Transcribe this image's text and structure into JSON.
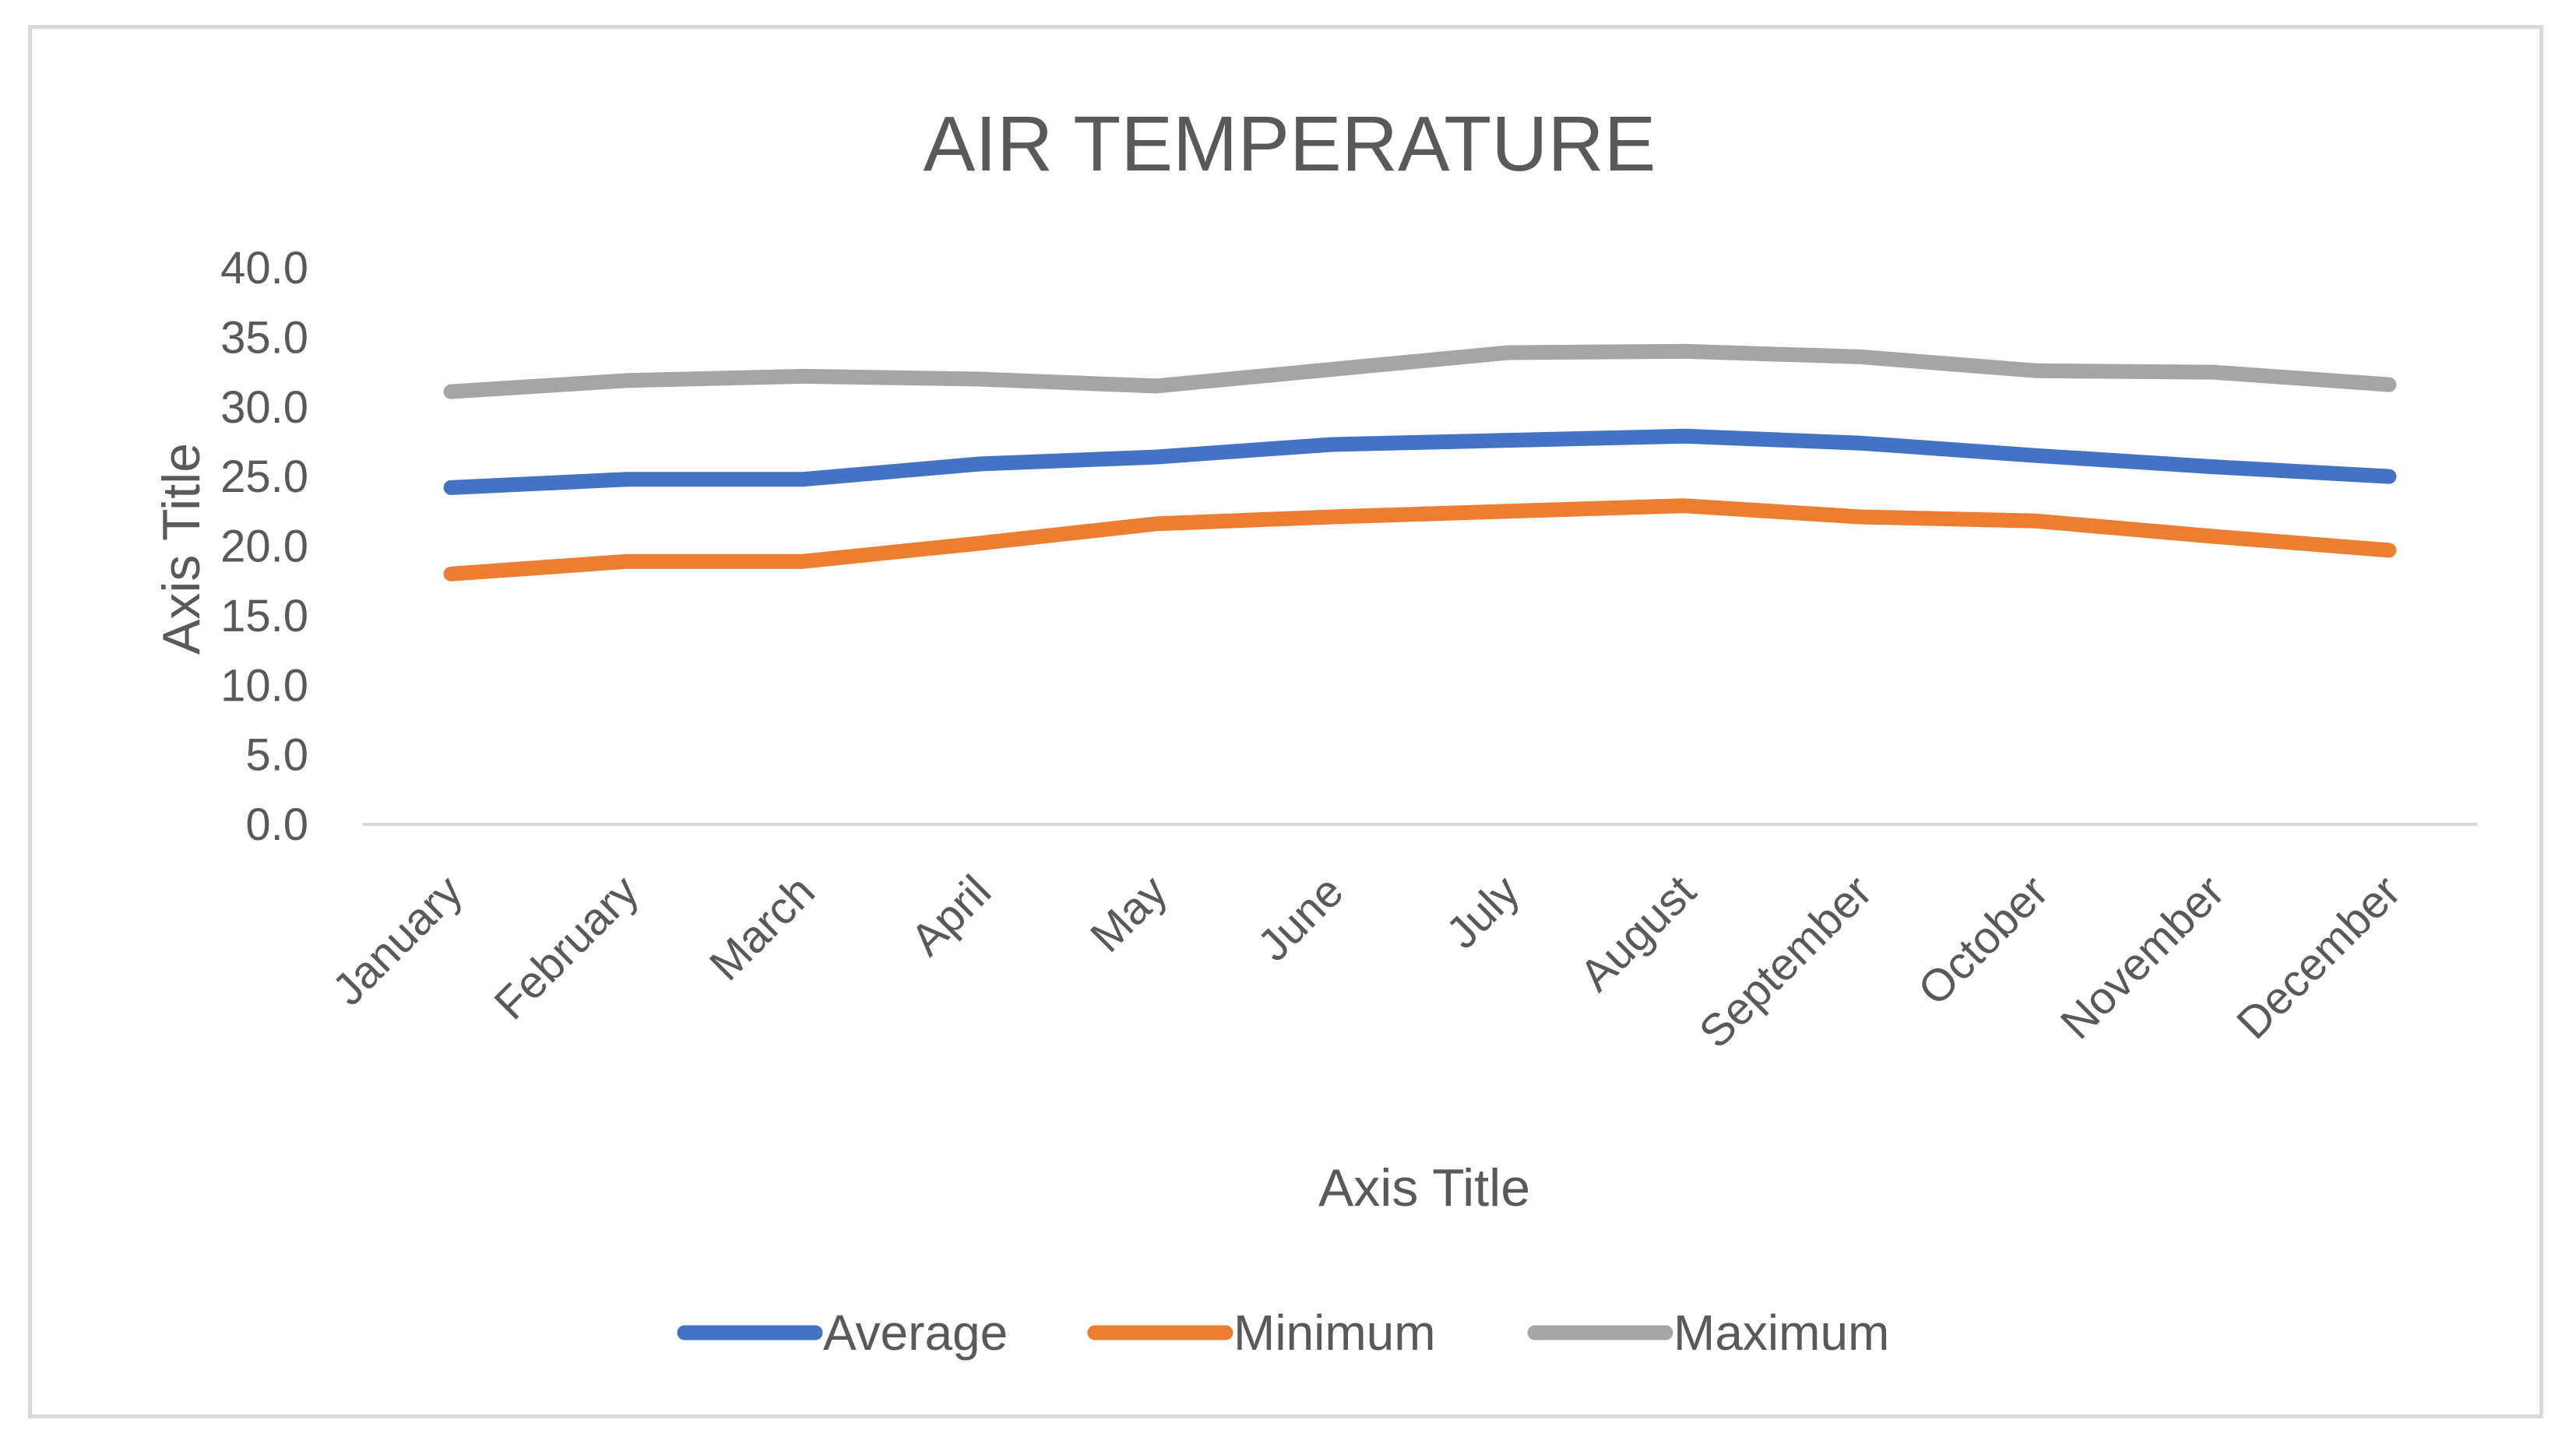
{
  "chart_data": {
    "type": "line",
    "title": "AIR TEMPERATURE",
    "xlabel": "Axis Title",
    "ylabel": "Axis Title",
    "categories": [
      "January",
      "February",
      "March",
      "April",
      "May",
      "June",
      "July",
      "August",
      "September",
      "October",
      "November",
      "December"
    ],
    "ylim": [
      0,
      40
    ],
    "ytick_step": 5,
    "ytick_labels": [
      "0.0",
      "5.0",
      "10.0",
      "15.0",
      "20.0",
      "25.0",
      "30.0",
      "35.0",
      "40.0"
    ],
    "grid": false,
    "legend_position": "bottom",
    "series": [
      {
        "name": "Average",
        "color": "#4472c4",
        "values": [
          24.2,
          24.8,
          24.8,
          25.9,
          26.4,
          27.3,
          27.6,
          27.9,
          27.4,
          26.5,
          25.7,
          25.0
        ]
      },
      {
        "name": "Minimum",
        "color": "#ed7d31",
        "values": [
          18.0,
          18.9,
          18.9,
          20.2,
          21.6,
          22.1,
          22.5,
          22.9,
          22.1,
          21.8,
          20.7,
          19.7
        ]
      },
      {
        "name": "Maximum",
        "color": "#a5a5a5",
        "values": [
          31.1,
          31.9,
          32.2,
          32.0,
          31.5,
          32.7,
          33.9,
          34.0,
          33.6,
          32.6,
          32.5,
          31.6
        ]
      }
    ]
  }
}
